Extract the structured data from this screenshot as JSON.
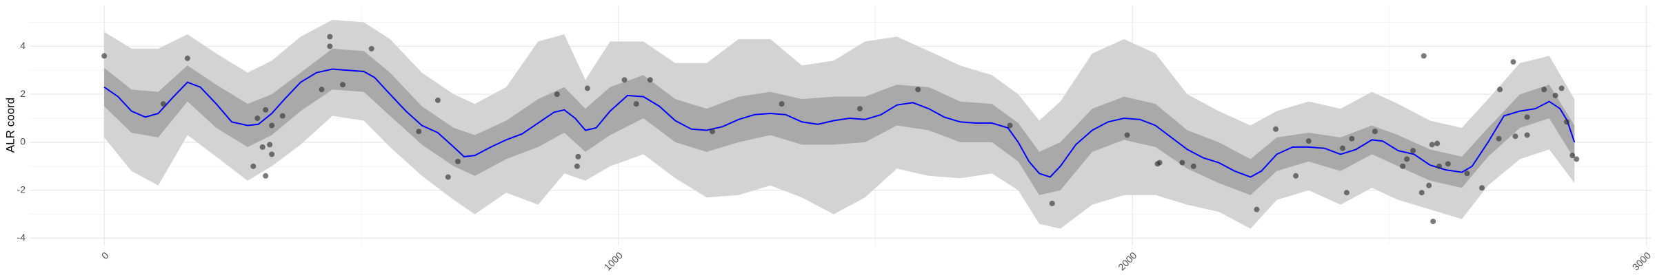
{
  "chart_data": {
    "type": "line",
    "y_label": "ALR coord",
    "xlim": [
      -145,
      3010
    ],
    "ylim": [
      -4.3,
      5.7
    ],
    "xticks": [
      0,
      1000,
      2000,
      3000
    ],
    "yticks": [
      -4,
      -2,
      0,
      2,
      4
    ],
    "minor_xticks": [
      500,
      1500,
      2500
    ],
    "minor_yticks": [
      -3,
      -1,
      1,
      3,
      5
    ],
    "grid": true,
    "band_x": [
      0,
      53,
      105,
      162,
      218,
      279,
      326,
      382,
      444,
      505,
      556,
      618,
      680,
      721,
      782,
      844,
      895,
      936,
      984,
      1049,
      1111,
      1172,
      1234,
      1296,
      1357,
      1419,
      1480,
      1542,
      1604,
      1665,
      1727,
      1778,
      1819,
      1860,
      1922,
      1984,
      2045,
      2107,
      2168,
      2230,
      2281,
      2343,
      2405,
      2466,
      2517,
      2579,
      2641,
      2692,
      2754,
      2811,
      2860
    ],
    "bands": [
      {
        "color": "#d3d3d3",
        "lower": [
          0.2,
          -1.2,
          -1.8,
          0.3,
          -0.6,
          -1.6,
          -1.0,
          -0.1,
          1.1,
          0.9,
          -0.2,
          -1.4,
          -2.4,
          -3.0,
          -2.1,
          -2.6,
          -1.3,
          -1.6,
          -1.0,
          -0.5,
          -1.5,
          -2.3,
          -2.2,
          -1.8,
          -2.3,
          -3.0,
          -2.3,
          -1.1,
          -1.4,
          -1.5,
          -1.3,
          -2.0,
          -3.4,
          -3.6,
          -2.6,
          -2.2,
          -2.2,
          -2.6,
          -2.9,
          -3.6,
          -2.4,
          -2.0,
          -2.6,
          -1.9,
          -2.4,
          -2.8,
          -3.2,
          -1.8,
          -0.7,
          -0.3,
          -1.7
        ],
        "upper": [
          4.6,
          3.9,
          3.9,
          4.5,
          3.7,
          2.9,
          3.4,
          4.4,
          5.1,
          5.0,
          4.3,
          2.9,
          2.0,
          1.6,
          2.3,
          4.2,
          4.5,
          2.6,
          4.2,
          4.2,
          3.3,
          3.3,
          4.3,
          4.3,
          3.2,
          3.4,
          4.2,
          4.4,
          3.8,
          3.2,
          2.8,
          2.0,
          0.9,
          1.7,
          3.7,
          4.3,
          3.7,
          2.0,
          1.3,
          0.7,
          1.3,
          1.7,
          1.4,
          2.1,
          1.6,
          0.9,
          0.6,
          1.8,
          3.3,
          3.6,
          1.8
        ]
      },
      {
        "color": "#a9a9a9",
        "lower": [
          1.5,
          0.4,
          0.2,
          1.7,
          0.6,
          -0.2,
          0.3,
          1.3,
          2.2,
          2.1,
          1.1,
          -0.1,
          -1.0,
          -1.4,
          -0.7,
          -0.2,
          0.4,
          -0.4,
          0.3,
          1.0,
          0.0,
          -0.4,
          0.0,
          0.3,
          -0.1,
          -0.1,
          0.0,
          0.7,
          0.5,
          0.0,
          0.0,
          -0.8,
          -2.2,
          -2.0,
          -0.4,
          0.1,
          -0.2,
          -1.1,
          -1.7,
          -2.2,
          -1.2,
          -0.8,
          -1.2,
          -0.5,
          -1.0,
          -1.6,
          -1.9,
          -0.6,
          0.6,
          1.0,
          -0.7
        ],
        "upper": [
          3.1,
          2.2,
          2.1,
          3.2,
          2.4,
          1.6,
          2.0,
          2.9,
          3.9,
          3.8,
          2.9,
          1.5,
          0.6,
          0.3,
          0.9,
          1.8,
          2.3,
          1.4,
          2.3,
          2.8,
          1.8,
          1.4,
          1.9,
          2.1,
          1.8,
          1.9,
          1.9,
          2.4,
          2.3,
          1.7,
          1.6,
          0.8,
          -0.4,
          0.0,
          1.4,
          1.9,
          1.6,
          0.5,
          0.0,
          -0.7,
          0.2,
          0.4,
          0.2,
          0.7,
          0.3,
          -0.3,
          -0.6,
          0.6,
          2.0,
          2.4,
          0.7
        ]
      }
    ],
    "line": {
      "color": "#0000ff",
      "x": [
        0,
        27,
        53,
        80,
        105,
        135,
        162,
        187,
        218,
        248,
        279,
        300,
        326,
        351,
        382,
        413,
        444,
        474,
        505,
        526,
        556,
        587,
        618,
        649,
        680,
        700,
        721,
        752,
        782,
        813,
        844,
        875,
        895,
        916,
        936,
        957,
        984,
        1018,
        1049,
        1080,
        1111,
        1142,
        1172,
        1203,
        1234,
        1265,
        1296,
        1326,
        1357,
        1388,
        1419,
        1450,
        1480,
        1511,
        1542,
        1573,
        1604,
        1634,
        1665,
        1696,
        1727,
        1758,
        1778,
        1799,
        1819,
        1840,
        1860,
        1890,
        1922,
        1953,
        1984,
        2015,
        2045,
        2076,
        2107,
        2138,
        2168,
        2199,
        2230,
        2251,
        2281,
        2312,
        2343,
        2374,
        2405,
        2435,
        2466,
        2487,
        2517,
        2548,
        2579,
        2610,
        2641,
        2661,
        2692,
        2723,
        2754,
        2784,
        2811,
        2832,
        2846,
        2860
      ],
      "values": [
        2.3,
        1.9,
        1.3,
        1.05,
        1.2,
        1.9,
        2.5,
        2.3,
        1.6,
        0.85,
        0.7,
        0.75,
        1.2,
        1.8,
        2.5,
        2.9,
        3.05,
        3.0,
        2.95,
        2.7,
        2.0,
        1.3,
        0.7,
        0.4,
        -0.2,
        -0.6,
        -0.55,
        -0.2,
        0.1,
        0.35,
        0.8,
        1.25,
        1.35,
        1.0,
        0.5,
        0.6,
        1.3,
        1.95,
        1.9,
        1.5,
        0.9,
        0.55,
        0.5,
        0.65,
        0.95,
        1.15,
        1.2,
        1.15,
        0.85,
        0.75,
        0.9,
        1.0,
        0.95,
        1.15,
        1.55,
        1.65,
        1.4,
        1.05,
        0.85,
        0.8,
        0.8,
        0.6,
        0.0,
        -0.8,
        -1.3,
        -1.45,
        -1.0,
        -0.1,
        0.5,
        0.85,
        1.0,
        0.95,
        0.7,
        0.2,
        -0.3,
        -0.65,
        -0.85,
        -1.2,
        -1.45,
        -1.2,
        -0.5,
        -0.2,
        -0.2,
        -0.25,
        -0.5,
        -0.3,
        0.1,
        0.05,
        -0.35,
        -0.5,
        -0.95,
        -1.15,
        -1.25,
        -1.0,
        0.0,
        1.1,
        1.3,
        1.4,
        1.7,
        1.4,
        0.9,
        0.0
      ]
    },
    "points": {
      "color": "#333333",
      "x": [
        0,
        162,
        115,
        298,
        314,
        290,
        308,
        314,
        322,
        326,
        326,
        347,
        423,
        439,
        439,
        464,
        520,
        612,
        649,
        669,
        688,
        881,
        920,
        922,
        940,
        1012,
        1035,
        1062,
        1183,
        1318,
        1470,
        1583,
        1762,
        1844,
        1990,
        2049,
        2053,
        2097,
        2119,
        2242,
        2279,
        2318,
        2343,
        2409,
        2417,
        2427,
        2472,
        2526,
        2534,
        2546,
        2563,
        2567,
        2577,
        2583,
        2585,
        2593,
        2597,
        2614,
        2651,
        2680,
        2713,
        2715,
        2741,
        2745,
        2768,
        2768,
        2801,
        2823,
        2835,
        2845,
        2856,
        2864
      ],
      "values": [
        3.6,
        3.5,
        1.6,
        1.0,
        1.35,
        -1.0,
        -0.2,
        -1.4,
        -0.1,
        -0.5,
        0.7,
        1.1,
        2.2,
        4.4,
        4.0,
        2.4,
        3.9,
        0.45,
        1.75,
        -1.45,
        -0.8,
        2.0,
        -1.0,
        -0.6,
        2.25,
        2.6,
        1.6,
        2.6,
        0.45,
        1.6,
        1.4,
        2.2,
        0.7,
        -2.55,
        0.3,
        -0.9,
        -0.85,
        -0.85,
        -1.0,
        -2.8,
        0.55,
        -1.4,
        0.05,
        -0.25,
        -2.1,
        0.15,
        0.45,
        -1.0,
        -0.7,
        -0.35,
        -2.1,
        3.6,
        -1.8,
        -0.1,
        -3.3,
        -0.05,
        -1.0,
        -0.9,
        -1.3,
        -1.9,
        0.15,
        2.2,
        3.35,
        0.25,
        0.3,
        1.05,
        2.2,
        1.95,
        2.25,
        0.85,
        -0.55,
        -0.7
      ]
    }
  }
}
